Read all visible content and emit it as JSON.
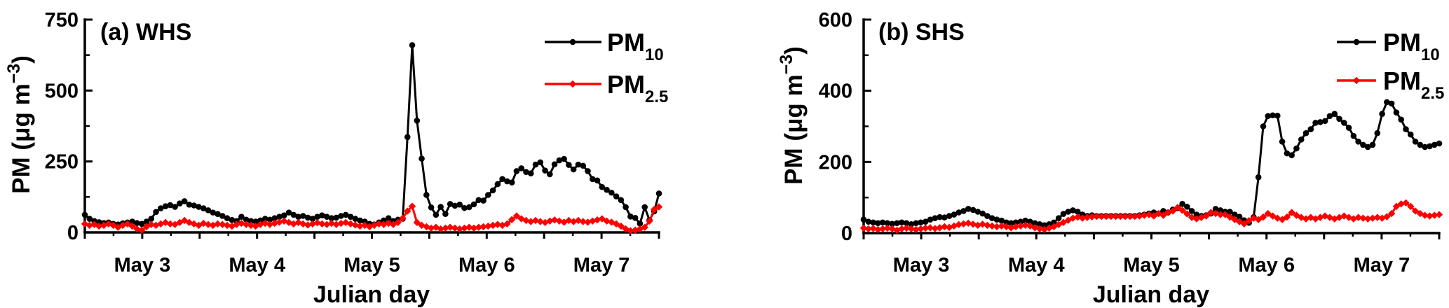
{
  "figure": {
    "background": "#ffffff",
    "series_colors": {
      "pm10": "#000000",
      "pm25": "#ff0000"
    }
  },
  "chart_data": [
    {
      "type": "line",
      "panel_label": "(a) WHS",
      "xlabel": "Julian day",
      "ylabel": {
        "prefix": "PM (μg m",
        "sup": "−3",
        "suffix": ")"
      },
      "ylim": [
        0,
        750
      ],
      "yticks_major": [
        0,
        250,
        500,
        750
      ],
      "yticks_minor": [
        125,
        375,
        625
      ],
      "xlim_days": [
        2.5,
        7.5
      ],
      "xtick_minor_step_days": 0.25,
      "xticks_major": [
        {
          "day": 3,
          "label": "May 3"
        },
        {
          "day": 4,
          "label": "May 4"
        },
        {
          "day": 5,
          "label": "May 5"
        },
        {
          "day": 6,
          "label": "May 6"
        },
        {
          "day": 7,
          "label": "May 7"
        }
      ],
      "legend": [
        {
          "main": "PM",
          "sub": "10",
          "color": "#000000",
          "marker": "circle"
        },
        {
          "main": "PM",
          "sub": "2.5",
          "color": "#ff0000",
          "marker": "diamond"
        }
      ],
      "series": [
        {
          "name": "PM10",
          "color": "#000000",
          "marker": "circle",
          "x_start_day": 2.5,
          "x_end_day": 7.5,
          "values": [
            62,
            48,
            40,
            36,
            33,
            35,
            30,
            28,
            32,
            35,
            38,
            33,
            30,
            38,
            48,
            72,
            85,
            92,
            96,
            90,
            102,
            110,
            98,
            95,
            90,
            85,
            78,
            70,
            65,
            58,
            50,
            44,
            40,
            55,
            45,
            40,
            38,
            42,
            48,
            45,
            50,
            55,
            60,
            70,
            62,
            55,
            58,
            52,
            48,
            55,
            60,
            55,
            50,
            52,
            58,
            62,
            55,
            48,
            42,
            38,
            30,
            28,
            35,
            42,
            50,
            40,
            45,
            48,
            336,
            660,
            394,
            260,
            132,
            88,
            62,
            90,
            65,
            100,
            94,
            98,
            86,
            89,
            99,
            114,
            112,
            132,
            148,
            170,
            188,
            180,
            176,
            216,
            226,
            213,
            208,
            239,
            247,
            218,
            205,
            240,
            254,
            259,
            238,
            222,
            239,
            235,
            216,
            188,
            183,
            160,
            150,
            140,
            127,
            114,
            89,
            56,
            51,
            31,
            89,
            43,
            74,
            137
          ]
        },
        {
          "name": "PM2.5",
          "color": "#ff0000",
          "marker": "diamond",
          "x_start_day": 2.5,
          "x_end_day": 7.5,
          "values": [
            30,
            25,
            28,
            22,
            25,
            30,
            25,
            18,
            25,
            30,
            22,
            12,
            8,
            20,
            28,
            25,
            30,
            35,
            30,
            28,
            35,
            42,
            35,
            30,
            25,
            32,
            28,
            25,
            30,
            28,
            25,
            22,
            28,
            32,
            28,
            25,
            22,
            28,
            32,
            28,
            32,
            36,
            40,
            35,
            30,
            35,
            30,
            26,
            30,
            34,
            30,
            28,
            32,
            28,
            32,
            35,
            30,
            26,
            22,
            25,
            20,
            25,
            30,
            28,
            32,
            28,
            35,
            50,
            75,
            92,
            35,
            25,
            20,
            15,
            18,
            12,
            15,
            18,
            15,
            12,
            15,
            18,
            15,
            18,
            20,
            22,
            25,
            28,
            25,
            30,
            45,
            58,
            48,
            42,
            38,
            42,
            38,
            35,
            40,
            44,
            40,
            36,
            42,
            38,
            42,
            38,
            36,
            40,
            44,
            48,
            40,
            36,
            30,
            22,
            12,
            6,
            8,
            12,
            18,
            40,
            81,
            90
          ]
        }
      ]
    },
    {
      "type": "line",
      "panel_label": "(b) SHS",
      "xlabel": "Julian day",
      "ylabel": {
        "prefix": "PM (μg m",
        "sup": "−3",
        "suffix": ")"
      },
      "ylim": [
        0,
        600
      ],
      "yticks_major": [
        0,
        200,
        400,
        600
      ],
      "yticks_minor": [
        100,
        300,
        500
      ],
      "xlim_days": [
        2.5,
        7.5
      ],
      "xtick_minor_step_days": 0.25,
      "xticks_major": [
        {
          "day": 3,
          "label": "May 3"
        },
        {
          "day": 4,
          "label": "May 4"
        },
        {
          "day": 5,
          "label": "May 5"
        },
        {
          "day": 6,
          "label": "May 6"
        },
        {
          "day": 7,
          "label": "May 7"
        }
      ],
      "legend": [
        {
          "main": "PM",
          "sub": "10",
          "color": "#000000",
          "marker": "circle"
        },
        {
          "main": "PM",
          "sub": "2.5",
          "color": "#ff0000",
          "marker": "diamond"
        }
      ],
      "series": [
        {
          "name": "PM10",
          "color": "#000000",
          "marker": "circle",
          "x_start_day": 2.5,
          "x_end_day": 7.5,
          "values": [
            38,
            32,
            30,
            28,
            30,
            28,
            26,
            28,
            30,
            28,
            25,
            28,
            30,
            32,
            38,
            42,
            45,
            44,
            48,
            52,
            58,
            62,
            68,
            65,
            60,
            55,
            48,
            42,
            38,
            35,
            30,
            28,
            30,
            32,
            35,
            32,
            28,
            25,
            22,
            25,
            30,
            42,
            54,
            60,
            64,
            60,
            52,
            48,
            50,
            48,
            48,
            48,
            48,
            48,
            48,
            48,
            48,
            48,
            50,
            52,
            55,
            58,
            55,
            62,
            58,
            66,
            70,
            82,
            74,
            62,
            52,
            48,
            50,
            55,
            68,
            64,
            60,
            60,
            52,
            46,
            36,
            29,
            45,
            157,
            300,
            329,
            331,
            330,
            257,
            224,
            219,
            238,
            263,
            281,
            292,
            310,
            312,
            315,
            329,
            335,
            321,
            310,
            296,
            273,
            257,
            248,
            242,
            248,
            281,
            335,
            368,
            364,
            339,
            319,
            292,
            277,
            257,
            248,
            242,
            244,
            248,
            252
          ]
        },
        {
          "name": "PM2.5",
          "color": "#ff0000",
          "marker": "diamond",
          "x_start_day": 2.5,
          "x_end_day": 7.5,
          "values": [
            14,
            12,
            13,
            10,
            12,
            14,
            12,
            8,
            12,
            14,
            12,
            10,
            12,
            14,
            15,
            13,
            15,
            18,
            16,
            20,
            24,
            26,
            28,
            25,
            22,
            25,
            22,
            20,
            18,
            20,
            18,
            15,
            18,
            20,
            22,
            20,
            15,
            12,
            10,
            14,
            18,
            24,
            30,
            36,
            42,
            45,
            42,
            44,
            46,
            47,
            47,
            47,
            47,
            47,
            47,
            47,
            47,
            47,
            48,
            50,
            52,
            48,
            55,
            50,
            58,
            62,
            72,
            64,
            54,
            44,
            40,
            44,
            48,
            58,
            55,
            52,
            52,
            45,
            38,
            32,
            26,
            35,
            42,
            38,
            45,
            55,
            48,
            42,
            38,
            45,
            58,
            50,
            44,
            40,
            44,
            40,
            44,
            48,
            44,
            40,
            44,
            48,
            44,
            40,
            44,
            42,
            40,
            42,
            44,
            42,
            46,
            55,
            75,
            82,
            85,
            75,
            62,
            55,
            50,
            48,
            50,
            52
          ]
        }
      ]
    }
  ]
}
